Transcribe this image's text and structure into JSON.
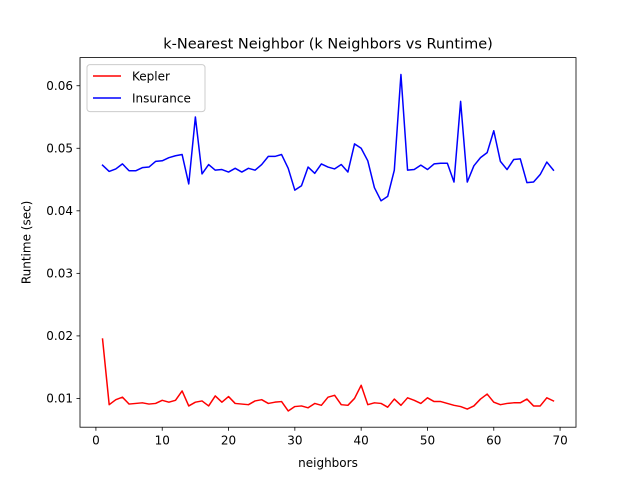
{
  "chart_data": {
    "type": "line",
    "title": "k-Nearest Neighbor (k Neighbors vs Runtime)",
    "xlabel": "neighbors",
    "ylabel": "Runtime (sec)",
    "xlim": [
      -2.4,
      72.4
    ],
    "ylim": [
      0.0054,
      0.0645
    ],
    "xticks": [
      0,
      10,
      20,
      30,
      40,
      50,
      60,
      70
    ],
    "yticks": [
      0.01,
      0.02,
      0.03,
      0.04,
      0.05,
      0.06
    ],
    "ytick_labels": [
      "0.01",
      "0.02",
      "0.03",
      "0.04",
      "0.05",
      "0.06"
    ],
    "legend": {
      "position": "upper-left"
    },
    "grid": false,
    "x": [
      1,
      2,
      3,
      4,
      5,
      6,
      7,
      8,
      9,
      10,
      11,
      12,
      13,
      14,
      15,
      16,
      17,
      18,
      19,
      20,
      21,
      22,
      23,
      24,
      25,
      26,
      27,
      28,
      29,
      30,
      31,
      32,
      33,
      34,
      35,
      36,
      37,
      38,
      39,
      40,
      41,
      42,
      43,
      44,
      45,
      46,
      47,
      48,
      49,
      50,
      51,
      52,
      53,
      54,
      55,
      56,
      57,
      58,
      59,
      60,
      61,
      62,
      63,
      64,
      65,
      66,
      67,
      68,
      69
    ],
    "series": [
      {
        "name": "Kepler",
        "color": "#ff0000",
        "values": [
          0.0195,
          0.009,
          0.0098,
          0.0102,
          0.0091,
          0.0092,
          0.0093,
          0.0091,
          0.0092,
          0.0097,
          0.0094,
          0.0097,
          0.0112,
          0.0088,
          0.0094,
          0.0096,
          0.0088,
          0.0104,
          0.0094,
          0.0103,
          0.0092,
          0.0091,
          0.009,
          0.0096,
          0.0098,
          0.0092,
          0.0094,
          0.0095,
          0.008,
          0.0087,
          0.0088,
          0.0085,
          0.0092,
          0.0089,
          0.0102,
          0.0105,
          0.009,
          0.0089,
          0.01,
          0.0121,
          0.009,
          0.0093,
          0.0092,
          0.0086,
          0.0099,
          0.0089,
          0.0101,
          0.0097,
          0.0092,
          0.0101,
          0.0095,
          0.0095,
          0.0092,
          0.0089,
          0.0087,
          0.0083,
          0.0088,
          0.0099,
          0.0107,
          0.0094,
          0.009,
          0.0092,
          0.0093,
          0.0093,
          0.0099,
          0.0088,
          0.0088,
          0.0101,
          0.0096
        ]
      },
      {
        "name": "Insurance",
        "color": "#0000ff",
        "values": [
          0.0473,
          0.0463,
          0.0467,
          0.0475,
          0.0464,
          0.0464,
          0.0469,
          0.047,
          0.0479,
          0.048,
          0.0485,
          0.0488,
          0.049,
          0.0443,
          0.055,
          0.0459,
          0.0474,
          0.0465,
          0.0466,
          0.0462,
          0.0468,
          0.0462,
          0.0468,
          0.0465,
          0.0474,
          0.0487,
          0.0487,
          0.049,
          0.0468,
          0.0433,
          0.044,
          0.047,
          0.046,
          0.0475,
          0.047,
          0.0467,
          0.0474,
          0.0462,
          0.0507,
          0.05,
          0.048,
          0.0437,
          0.0416,
          0.0423,
          0.0465,
          0.0618,
          0.0465,
          0.0466,
          0.0473,
          0.0466,
          0.0475,
          0.0476,
          0.0476,
          0.0446,
          0.0575,
          0.0446,
          0.0472,
          0.0485,
          0.0493,
          0.0528,
          0.0479,
          0.0466,
          0.0482,
          0.0483,
          0.0445,
          0.0446,
          0.0458,
          0.0478,
          0.0465
        ]
      }
    ]
  }
}
